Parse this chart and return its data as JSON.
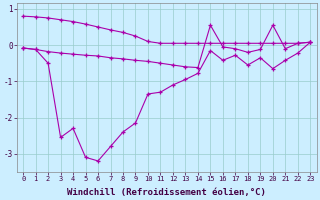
{
  "xlabel": "Windchill (Refroidissement éolien,°C)",
  "x": [
    0,
    1,
    2,
    3,
    4,
    5,
    6,
    7,
    8,
    9,
    10,
    11,
    12,
    13,
    14,
    15,
    16,
    17,
    18,
    19,
    20,
    21,
    22,
    23
  ],
  "series1": [
    0.8,
    0.78,
    0.75,
    0.7,
    0.65,
    0.58,
    0.5,
    0.42,
    0.35,
    0.25,
    0.1,
    0.05,
    0.05,
    0.05,
    0.05,
    0.05,
    0.05,
    0.05,
    0.05,
    0.05,
    0.05,
    0.05,
    0.05,
    0.08
  ],
  "series2": [
    -0.08,
    -0.12,
    -0.18,
    -0.22,
    -0.25,
    -0.28,
    -0.3,
    -0.35,
    -0.38,
    -0.42,
    -0.45,
    -0.5,
    -0.55,
    -0.6,
    -0.62,
    0.55,
    -0.05,
    -0.1,
    -0.2,
    -0.12,
    0.55,
    -0.1,
    0.05,
    0.08
  ],
  "series3": [
    -0.08,
    -0.12,
    -0.5,
    -2.55,
    -2.3,
    -3.1,
    -3.2,
    -2.8,
    -2.4,
    -2.15,
    -1.35,
    -1.3,
    -1.1,
    -0.95,
    -0.78,
    -0.15,
    -0.42,
    -0.28,
    -0.55,
    -0.35,
    -0.65,
    -0.42,
    -0.22,
    0.08
  ],
  "line_color": "#aa00aa",
  "marker": "+",
  "bg_color": "#cceeff",
  "grid_color": "#99cccc",
  "xlim": [
    -0.5,
    23.5
  ],
  "ylim": [
    -3.5,
    1.15
  ],
  "yticks": [
    1,
    0,
    -1,
    -2,
    -3
  ],
  "ytick_labels": [
    "1",
    "0",
    "-1",
    "-2",
    "-3"
  ],
  "xticks": [
    0,
    1,
    2,
    3,
    4,
    5,
    6,
    7,
    8,
    9,
    10,
    11,
    12,
    13,
    14,
    15,
    16,
    17,
    18,
    19,
    20,
    21,
    22,
    23
  ],
  "tick_fontsize": 5,
  "xlabel_fontsize": 6.5
}
